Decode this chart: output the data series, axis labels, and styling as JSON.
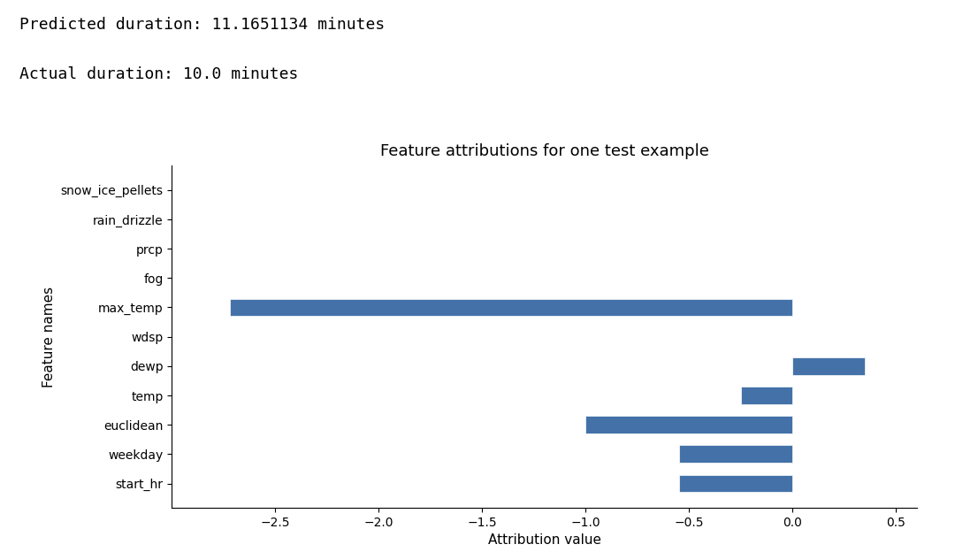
{
  "title": "Feature attributions for one test example",
  "xlabel": "Attribution value",
  "ylabel": "Feature names",
  "predicted_duration": "Predicted duration: 11.1651134 minutes",
  "actual_duration": "Actual duration: 10.0 minutes",
  "features_top_to_bottom": [
    "snow_ice_pellets",
    "rain_drizzle",
    "prcp",
    "fog",
    "max_temp",
    "wdsp",
    "dewp",
    "temp",
    "euclidean",
    "weekday",
    "start_hr"
  ],
  "attributions_top_to_bottom": [
    0.0,
    0.0,
    0.0,
    0.0,
    -2.72,
    0.0,
    0.35,
    -0.25,
    -1.0,
    -0.55,
    -0.55
  ],
  "bar_color": "#4472a8",
  "xlim": [
    -3.0,
    0.6
  ],
  "xticks": [
    -2.5,
    -2.0,
    -1.5,
    -1.0,
    -0.5,
    0.0,
    0.5
  ],
  "background_color": "#ffffff",
  "figsize": [
    10.8,
    6.24
  ],
  "dpi": 100,
  "title_fontsize": 13,
  "label_fontsize": 11,
  "tick_fontsize": 10,
  "header_fontsize": 13,
  "header_fontfamily": "monospace"
}
